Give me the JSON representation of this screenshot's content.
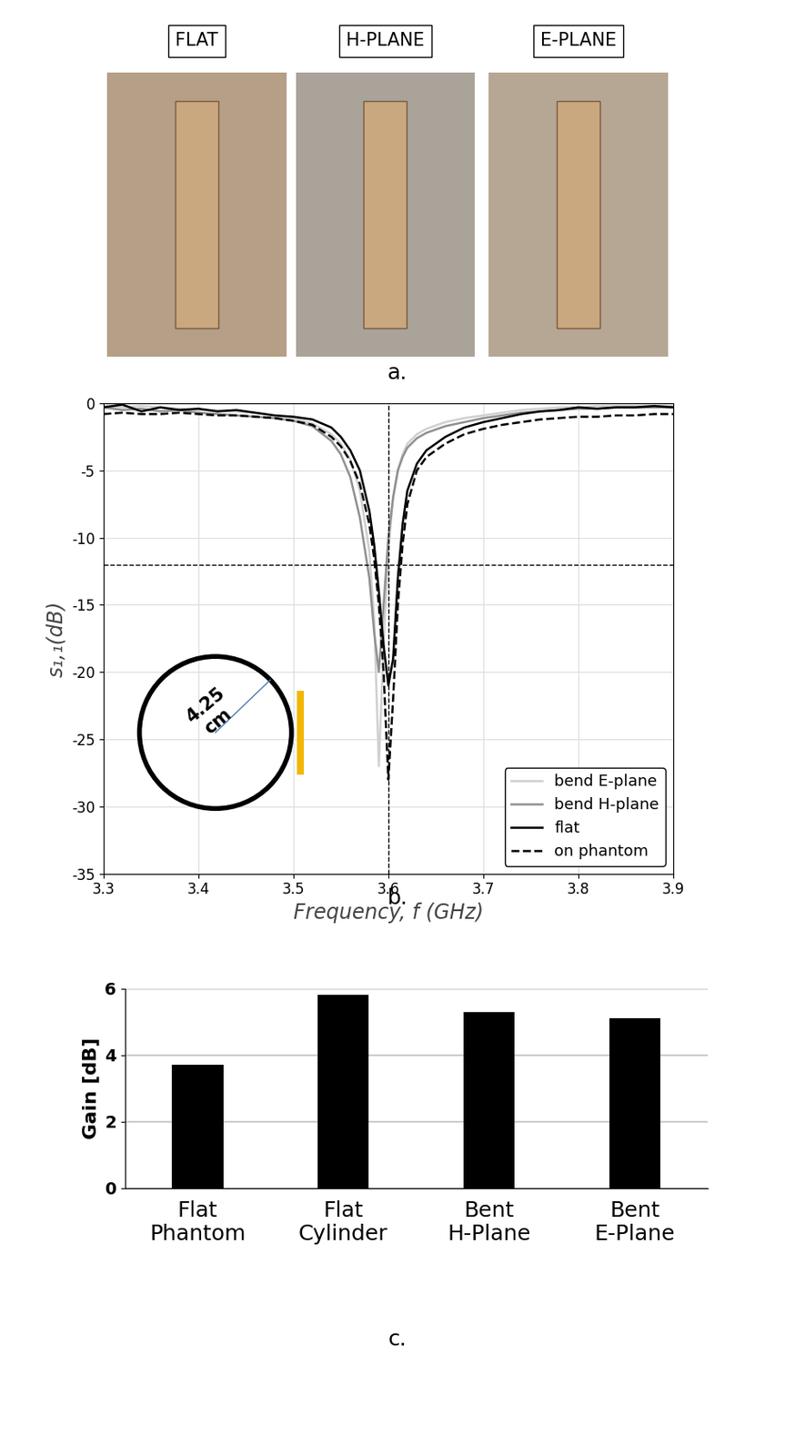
{
  "photo_panel": {
    "labels": [
      "FLAT",
      "H-PLANE",
      "E-PLANE"
    ],
    "caption": "a."
  },
  "chart_data": [
    {
      "type": "line",
      "caption": "b.",
      "xlabel": "Frequency, f (GHz)",
      "ylabel": "s₁,₁(dB)",
      "x": [
        3.3,
        3.32,
        3.34,
        3.36,
        3.38,
        3.4,
        3.42,
        3.44,
        3.46,
        3.48,
        3.5,
        3.52,
        3.54,
        3.55,
        3.56,
        3.57,
        3.58,
        3.585,
        3.59,
        3.595,
        3.6,
        3.605,
        3.61,
        3.615,
        3.62,
        3.63,
        3.64,
        3.66,
        3.68,
        3.7,
        3.72,
        3.74,
        3.76,
        3.78,
        3.8,
        3.82,
        3.84,
        3.86,
        3.88,
        3.9
      ],
      "series": [
        {
          "name": "bend E-plane",
          "color": "#d0d0d0",
          "line_style": "solid",
          "values": [
            -0.2,
            -0.3,
            -0.2,
            -0.3,
            -0.4,
            -0.5,
            -0.5,
            -0.6,
            -0.7,
            -0.9,
            -1.1,
            -1.5,
            -2.3,
            -3,
            -4.2,
            -6.5,
            -11,
            -16,
            -27,
            -18,
            -11,
            -7,
            -5,
            -3.8,
            -3,
            -2.3,
            -1.9,
            -1.4,
            -1.1,
            -0.9,
            -0.7,
            -0.5,
            -0.4,
            -0.3,
            -0.3,
            -0.2,
            -0.2,
            -0.2,
            -0.2,
            -0.2
          ]
        },
        {
          "name": "bend H-plane",
          "color": "#909090",
          "line_style": "solid",
          "values": [
            -0.3,
            -0.5,
            -0.4,
            -0.6,
            -0.5,
            -0.7,
            -0.8,
            -0.9,
            -1.0,
            -1.1,
            -1.3,
            -1.7,
            -2.8,
            -3.8,
            -5.5,
            -8.5,
            -13,
            -17,
            -20,
            -15,
            -10,
            -7,
            -5,
            -4,
            -3.3,
            -2.6,
            -2.2,
            -1.7,
            -1.4,
            -1.1,
            -0.9,
            -0.7,
            -0.6,
            -0.5,
            -0.4,
            -0.4,
            -0.3,
            -0.3,
            -0.3,
            -0.3
          ]
        },
        {
          "name": "flat",
          "color": "#000000",
          "line_style": "solid",
          "values": [
            -0.3,
            -0.1,
            -0.6,
            -0.3,
            -0.5,
            -0.4,
            -0.6,
            -0.5,
            -0.7,
            -0.9,
            -1.0,
            -1.2,
            -1.8,
            -2.5,
            -3.5,
            -5,
            -8,
            -10.5,
            -14,
            -18,
            -21,
            -19,
            -13,
            -9,
            -6.5,
            -4.5,
            -3.5,
            -2.5,
            -1.8,
            -1.4,
            -1.1,
            -0.8,
            -0.6,
            -0.5,
            -0.3,
            -0.4,
            -0.3,
            -0.3,
            -0.2,
            -0.3
          ]
        },
        {
          "name": "on phantom",
          "color": "#000000",
          "line_style": "dashed",
          "values": [
            -0.8,
            -0.7,
            -0.8,
            -0.8,
            -0.7,
            -0.8,
            -0.9,
            -0.9,
            -1.0,
            -1.1,
            -1.3,
            -1.6,
            -2.5,
            -3.2,
            -4.3,
            -6,
            -9,
            -11.5,
            -15,
            -20,
            -28,
            -22,
            -15,
            -10.5,
            -7.5,
            -5,
            -4,
            -3,
            -2.3,
            -1.9,
            -1.6,
            -1.4,
            -1.2,
            -1.1,
            -1.0,
            -1.0,
            -0.9,
            -0.9,
            -0.8,
            -0.8
          ]
        }
      ],
      "vlines": [
        3.6
      ],
      "hlines": [
        -12
      ],
      "annotations": [
        "4.25\ncm"
      ],
      "xlim": [
        3.3,
        3.9
      ],
      "xticks": [
        3.3,
        3.4,
        3.5,
        3.6,
        3.7,
        3.8,
        3.9
      ],
      "ylim": [
        -35,
        0
      ],
      "yticks": [
        -35,
        -30,
        -25,
        -20,
        -15,
        -10,
        -5,
        0
      ],
      "grid": true,
      "legend": "lower right"
    },
    {
      "type": "bar",
      "caption": "c.",
      "ylabel": "Gain [dB]",
      "categories": [
        "Flat\nPhantom",
        "Flat\nCylinder",
        "Bent\nH-Plane",
        "Bent\nE-Plane"
      ],
      "values": [
        3.7,
        5.8,
        5.3,
        5.1
      ],
      "color": "#000000",
      "ylim": [
        0,
        6
      ],
      "yticks": [
        0,
        2,
        4,
        6
      ],
      "grid": true
    }
  ]
}
